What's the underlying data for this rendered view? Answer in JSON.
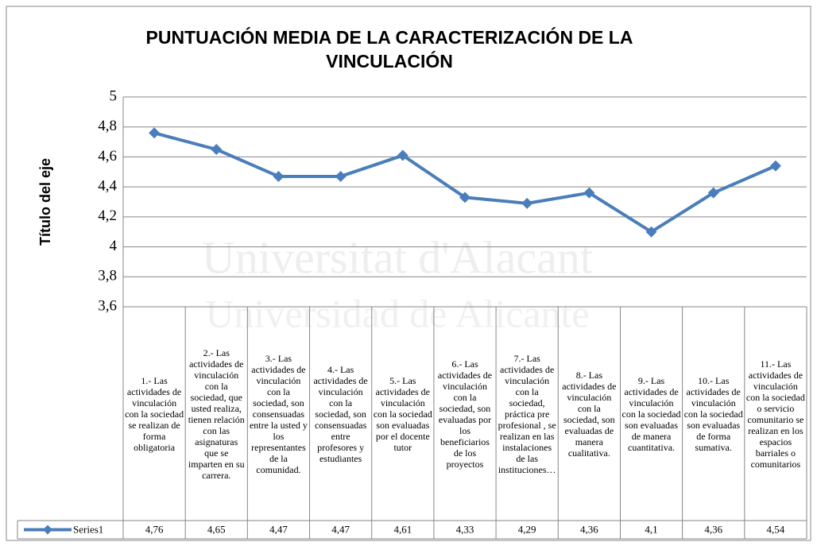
{
  "chart_data": {
    "type": "line",
    "title": "PUNTUACIÓN MEDIA DE LA CARACTERIZACIÓN DE LA VINCULACIÓN",
    "y_label": "Título del eje",
    "watermark": [
      "Universitat d'Alacant",
      "Universidad de Alicante"
    ],
    "categories": [
      "1.- Las actividades de vinculación con la sociedad se realizan de forma obligatoria",
      "2.- Las actividades de vinculación con la sociedad, que usted realiza, tienen relación con las asignaturas que se imparten en su carrera.",
      "3.- Las actividades de vinculación con la sociedad, son consensuadas entre la usted y los representantes de la comunidad.",
      "4.- Las actividades de vinculación con la sociedad, son consensuadas entre profesores y estudiantes",
      "5.- Las actividades de vinculación con la sociedad son evaluadas por el docente tutor",
      "6.- Las actividades de vinculación con la sociedad, son evaluadas por los beneficiarios de los proyectos",
      "7.- Las actividades de vinculación con la sociedad, práctica pre profesional , se realizan en las instalaciones de las instituciones…",
      "8.- Las actividades de vinculación con la sociedad, son evaluadas de manera cualitativa.",
      "9.- Las actividades de vinculación con la sociedad son evaluadas de manera cuantitativa.",
      "10.- Las actividades de vinculación con la sociedad son evaluadas de forma sumativa.",
      "11.- Las actividades de vinculación con la sociedad o servicio comunitario se realizan en los espacios barriales o comunitarios"
    ],
    "series": [
      {
        "name": "Series1",
        "color": "#4a7ebb",
        "values": [
          4.76,
          4.65,
          4.47,
          4.47,
          4.61,
          4.33,
          4.29,
          4.36,
          4.1,
          4.36,
          4.54
        ],
        "value_labels": [
          "4,76",
          "4,65",
          "4,47",
          "4,47",
          "4,61",
          "4,33",
          "4,29",
          "4,36",
          "4,1",
          "4,36",
          "4,54"
        ]
      }
    ],
    "ylim": [
      3.6,
      5
    ],
    "yticks": [
      {
        "value": 3.6,
        "label": "3,6"
      },
      {
        "value": 3.8,
        "label": "3,8"
      },
      4,
      {
        "value": 4.2,
        "label": "4,2"
      },
      {
        "value": 4.4,
        "label": "4,4"
      },
      {
        "value": 4.6,
        "label": "4,6"
      },
      {
        "value": 4.8,
        "label": "4,8"
      },
      5
    ],
    "grid": true
  }
}
